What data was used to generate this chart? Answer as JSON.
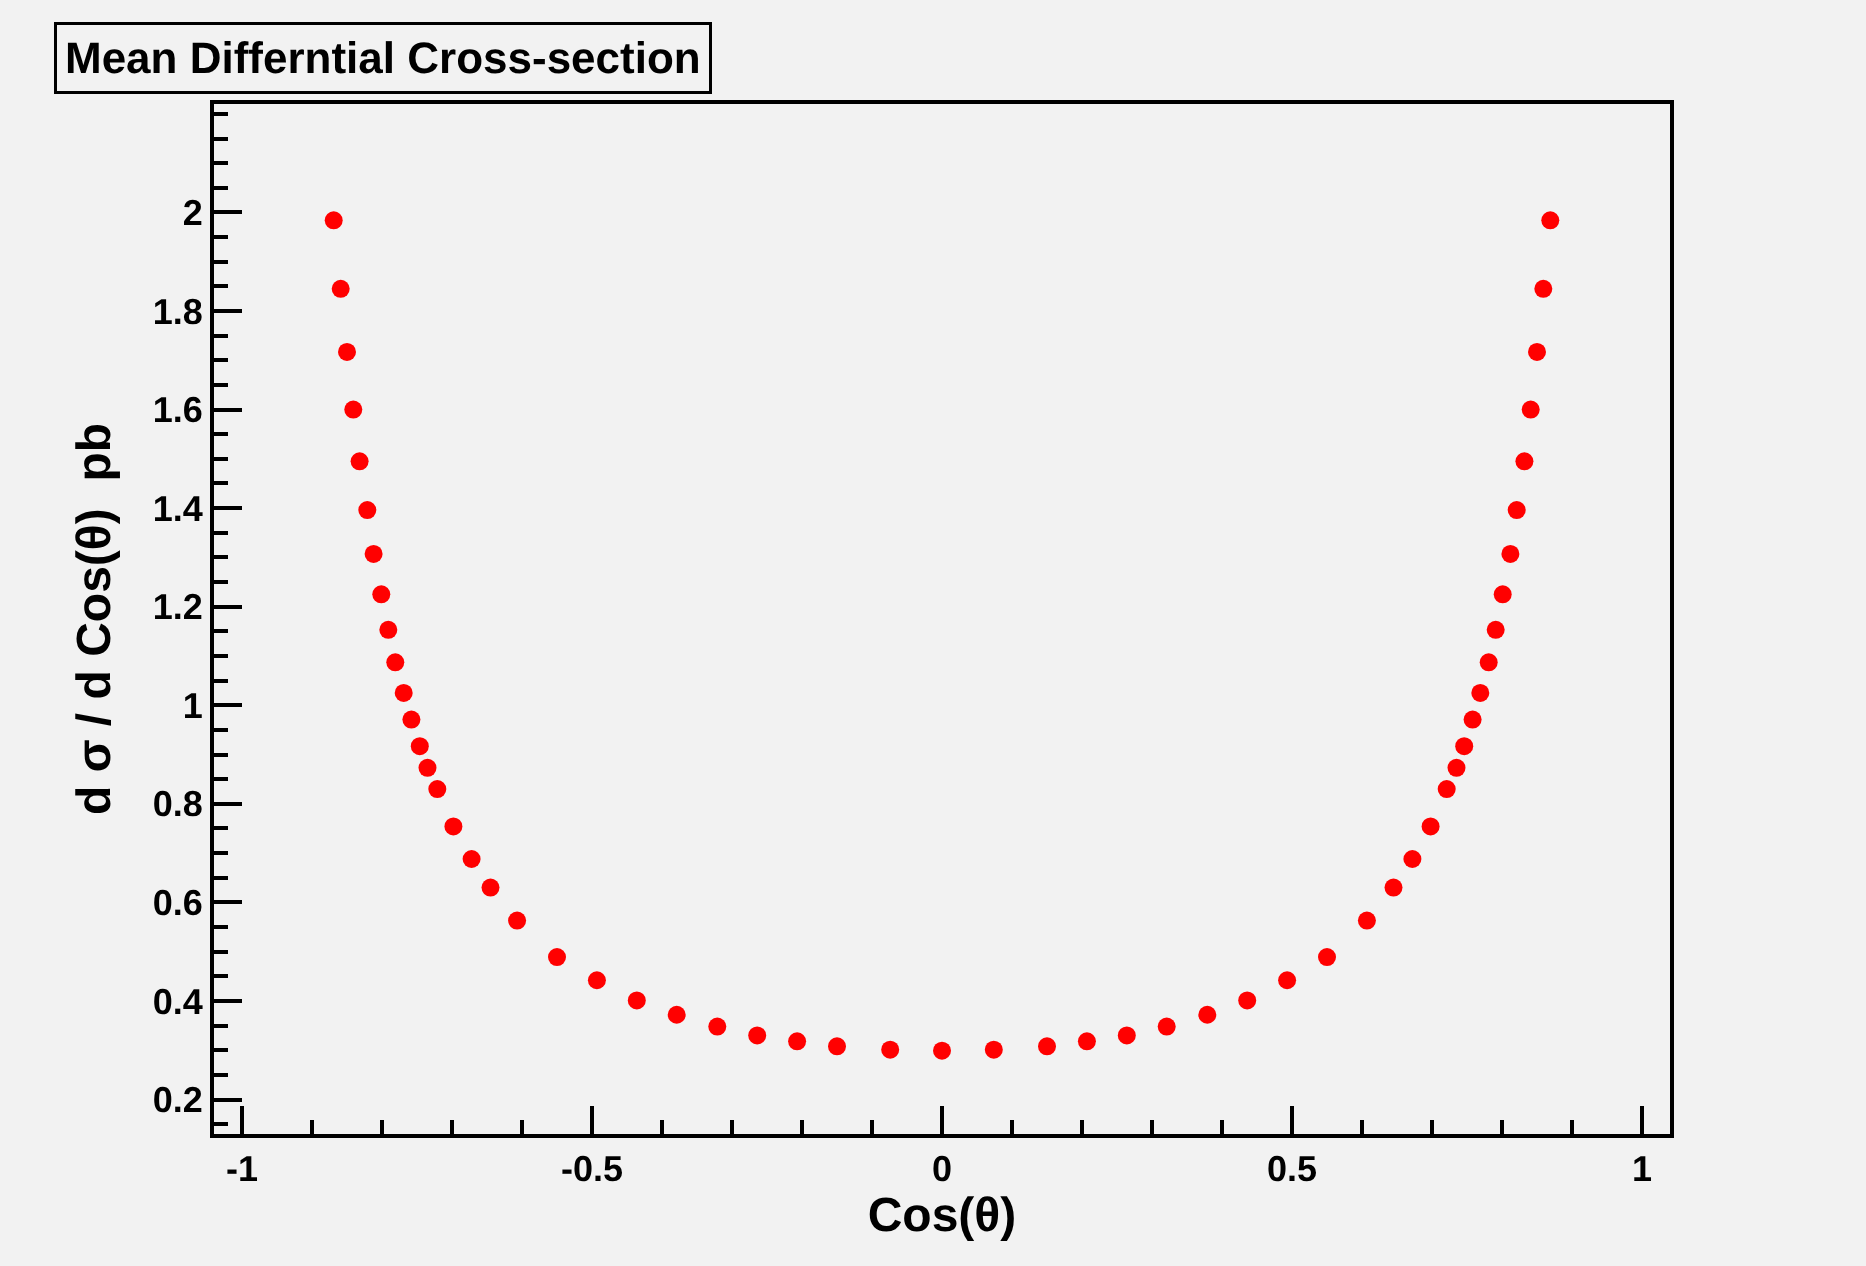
{
  "chart_data": {
    "type": "scatter",
    "title": "Mean Differntial Cross-section",
    "xlabel": "Cos(θ)",
    "ylabel": "d σ / d Cos(θ)  pb",
    "x": [
      -0.869,
      -0.859,
      -0.85,
      -0.841,
      -0.832,
      -0.821,
      -0.812,
      -0.801,
      -0.791,
      -0.781,
      -0.769,
      -0.758,
      -0.746,
      -0.735,
      -0.721,
      -0.698,
      -0.672,
      -0.645,
      -0.607,
      -0.55,
      -0.493,
      -0.436,
      -0.379,
      -0.321,
      -0.264,
      -0.207,
      -0.15,
      -0.074,
      0,
      0.074,
      0.15,
      0.207,
      0.264,
      0.321,
      0.379,
      0.436,
      0.493,
      0.55,
      0.607,
      0.645,
      0.672,
      0.698,
      0.721,
      0.735,
      0.746,
      0.758,
      0.769,
      0.781,
      0.791,
      0.801,
      0.812,
      0.821,
      0.832,
      0.841,
      0.85,
      0.859,
      0.869
    ],
    "series": [
      {
        "color": "#ff0000",
        "values": [
          1.984,
          1.845,
          1.717,
          1.6,
          1.495,
          1.396,
          1.307,
          1.225,
          1.153,
          1.087,
          1.025,
          0.971,
          0.917,
          0.873,
          0.83,
          0.754,
          0.688,
          0.63,
          0.563,
          0.489,
          0.442,
          0.401,
          0.372,
          0.348,
          0.33,
          0.318,
          0.308,
          0.301,
          0.299,
          0.301,
          0.308,
          0.318,
          0.33,
          0.348,
          0.372,
          0.401,
          0.442,
          0.489,
          0.563,
          0.63,
          0.688,
          0.754,
          0.83,
          0.873,
          0.917,
          0.971,
          1.025,
          1.087,
          1.153,
          1.225,
          1.307,
          1.396,
          1.495,
          1.6,
          1.717,
          1.845,
          1.984
        ]
      }
    ],
    "xlim": [
      -1.04,
      1.04
    ],
    "xticks": [
      -1,
      -0.5,
      0,
      0.5,
      1
    ],
    "ylim": [
      0.13,
      2.22
    ],
    "yticks": [
      0.2,
      0.4,
      0.6,
      0.8,
      1,
      1.2,
      1.4,
      1.6,
      1.8,
      2
    ],
    "marker": "circle",
    "grid": false
  }
}
